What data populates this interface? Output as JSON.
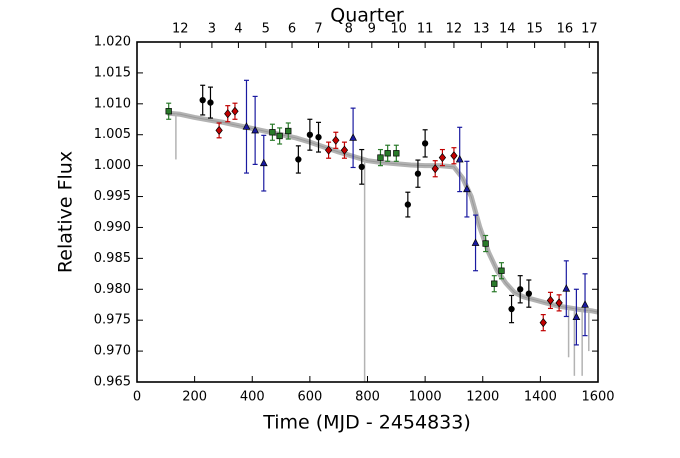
{
  "chart_data": {
    "type": "scatter",
    "title": "",
    "xlabel": "Time (MJD - 2454833)",
    "ylabel": "Relative Flux",
    "top_axis_label": "Quarter",
    "xlim": [
      0,
      1600
    ],
    "ylim": [
      0.965,
      1.02
    ],
    "xticks": [
      0,
      200,
      400,
      600,
      800,
      1000,
      1200,
      1400,
      1600
    ],
    "yticks": [
      0.965,
      0.97,
      0.975,
      0.98,
      0.985,
      0.99,
      0.995,
      1.0,
      1.005,
      1.01,
      1.015,
      1.02
    ],
    "xtick_labels": [
      "0",
      "200",
      "400",
      "600",
      "800",
      "1000",
      "1200",
      "1400",
      "1600"
    ],
    "ytick_labels": [
      "0.965",
      "0.970",
      "0.975",
      "0.980",
      "0.985",
      "0.990",
      "0.995",
      "1.000",
      "1.005",
      "1.010",
      "1.015",
      "1.020"
    ],
    "quarters": [
      {
        "label": "12",
        "x": 150
      },
      {
        "label": "3",
        "x": 260
      },
      {
        "label": "4",
        "x": 352
      },
      {
        "label": "5",
        "x": 447
      },
      {
        "label": "6",
        "x": 538
      },
      {
        "label": "7",
        "x": 630
      },
      {
        "label": "8",
        "x": 735
      },
      {
        "label": "9",
        "x": 815
      },
      {
        "label": "10",
        "x": 908
      },
      {
        "label": "11",
        "x": 1000
      },
      {
        "label": "12",
        "x": 1100
      },
      {
        "label": "13",
        "x": 1195
      },
      {
        "label": "14",
        "x": 1285
      },
      {
        "label": "15",
        "x": 1380
      },
      {
        "label": "16",
        "x": 1485
      },
      {
        "label": "17",
        "x": 1570
      }
    ],
    "background_curve": {
      "name": "Kepler light curve",
      "color": "#b3b3b3",
      "x": [
        105,
        150,
        200,
        260,
        300,
        350,
        400,
        450,
        500,
        550,
        600,
        650,
        700,
        750,
        800,
        850,
        900,
        950,
        1000,
        1050,
        1100,
        1130,
        1160,
        1190,
        1220,
        1250,
        1280,
        1310,
        1340,
        1380,
        1420,
        1460,
        1500,
        1540,
        1580,
        1600
      ],
      "y": [
        1.0085,
        1.0083,
        1.0078,
        1.0073,
        1.007,
        1.0065,
        1.006,
        1.0055,
        1.005,
        1.0045,
        1.0038,
        1.003,
        1.0022,
        1.0015,
        1.0008,
        1.0005,
        1.0003,
        1.0001,
        1.0,
        1.0,
        0.9998,
        0.998,
        0.995,
        0.99,
        0.986,
        0.983,
        0.981,
        0.9795,
        0.9788,
        0.9783,
        0.9778,
        0.9773,
        0.977,
        0.9767,
        0.9765,
        0.9763
      ],
      "dips": [
        {
          "x": 135,
          "y": 1.001
        },
        {
          "x": 790,
          "y": 0.965
        },
        {
          "x": 1498,
          "y": 0.969
        },
        {
          "x": 1518,
          "y": 0.966
        },
        {
          "x": 1545,
          "y": 0.966
        },
        {
          "x": 1568,
          "y": 0.97
        }
      ]
    },
    "series": [
      {
        "name": "black circles",
        "marker": "circle",
        "color": "#000000",
        "points": [
          {
            "x": 228,
            "y": 1.0106,
            "err": 0.0024
          },
          {
            "x": 255,
            "y": 1.0102,
            "err": 0.0025
          },
          {
            "x": 560,
            "y": 1.001,
            "err": 0.0022
          },
          {
            "x": 600,
            "y": 1.005,
            "err": 0.0025
          },
          {
            "x": 630,
            "y": 1.0046,
            "err": 0.0024
          },
          {
            "x": 780,
            "y": 0.9998,
            "err": 0.0028
          },
          {
            "x": 940,
            "y": 0.9937,
            "err": 0.002
          },
          {
            "x": 975,
            "y": 0.9987,
            "err": 0.0022
          },
          {
            "x": 1000,
            "y": 1.0036,
            "err": 0.0022
          },
          {
            "x": 1300,
            "y": 0.9768,
            "err": 0.0022
          },
          {
            "x": 1330,
            "y": 0.98,
            "err": 0.0022
          },
          {
            "x": 1360,
            "y": 0.9793,
            "err": 0.0022
          }
        ]
      },
      {
        "name": "red diamonds",
        "marker": "diamond",
        "color": "#c00000",
        "points": [
          {
            "x": 285,
            "y": 1.0057,
            "err": 0.0012
          },
          {
            "x": 315,
            "y": 1.0084,
            "err": 0.0013
          },
          {
            "x": 340,
            "y": 1.0088,
            "err": 0.0013
          },
          {
            "x": 665,
            "y": 1.0025,
            "err": 0.0013
          },
          {
            "x": 690,
            "y": 1.0041,
            "err": 0.0013
          },
          {
            "x": 720,
            "y": 1.0025,
            "err": 0.0013
          },
          {
            "x": 1035,
            "y": 0.9995,
            "err": 0.0013
          },
          {
            "x": 1060,
            "y": 1.0013,
            "err": 0.0013
          },
          {
            "x": 1100,
            "y": 1.0016,
            "err": 0.0013
          },
          {
            "x": 1410,
            "y": 0.9746,
            "err": 0.0013
          },
          {
            "x": 1435,
            "y": 0.9782,
            "err": 0.0013
          },
          {
            "x": 1465,
            "y": 0.9778,
            "err": 0.0013
          }
        ]
      },
      {
        "name": "green squares",
        "marker": "square",
        "color": "#2a7a2a",
        "points": [
          {
            "x": 110,
            "y": 1.0088,
            "err": 0.0013
          },
          {
            "x": 470,
            "y": 1.0054,
            "err": 0.0013
          },
          {
            "x": 495,
            "y": 1.0048,
            "err": 0.0013
          },
          {
            "x": 525,
            "y": 1.0056,
            "err": 0.0013
          },
          {
            "x": 845,
            "y": 1.0013,
            "err": 0.0013
          },
          {
            "x": 870,
            "y": 1.002,
            "err": 0.0013
          },
          {
            "x": 900,
            "y": 1.002,
            "err": 0.0013
          },
          {
            "x": 1210,
            "y": 0.9874,
            "err": 0.0013
          },
          {
            "x": 1240,
            "y": 0.9809,
            "err": 0.0013
          },
          {
            "x": 1265,
            "y": 0.983,
            "err": 0.0013
          }
        ]
      },
      {
        "name": "blue triangles",
        "marker": "triangle",
        "color": "#1a1aa0",
        "points": [
          {
            "x": 380,
            "y": 1.0063,
            "err": 0.0075
          },
          {
            "x": 410,
            "y": 1.0057,
            "err": 0.0055
          },
          {
            "x": 440,
            "y": 1.0004,
            "err": 0.0045
          },
          {
            "x": 750,
            "y": 1.0045,
            "err": 0.0048
          },
          {
            "x": 1120,
            "y": 1.001,
            "err": 0.0052
          },
          {
            "x": 1145,
            "y": 0.9962,
            "err": 0.0045
          },
          {
            "x": 1175,
            "y": 0.9875,
            "err": 0.0045
          },
          {
            "x": 1490,
            "y": 0.9801,
            "err": 0.0045
          },
          {
            "x": 1525,
            "y": 0.9755,
            "err": 0.0045
          },
          {
            "x": 1555,
            "y": 0.9775,
            "err": 0.005
          }
        ]
      }
    ]
  }
}
